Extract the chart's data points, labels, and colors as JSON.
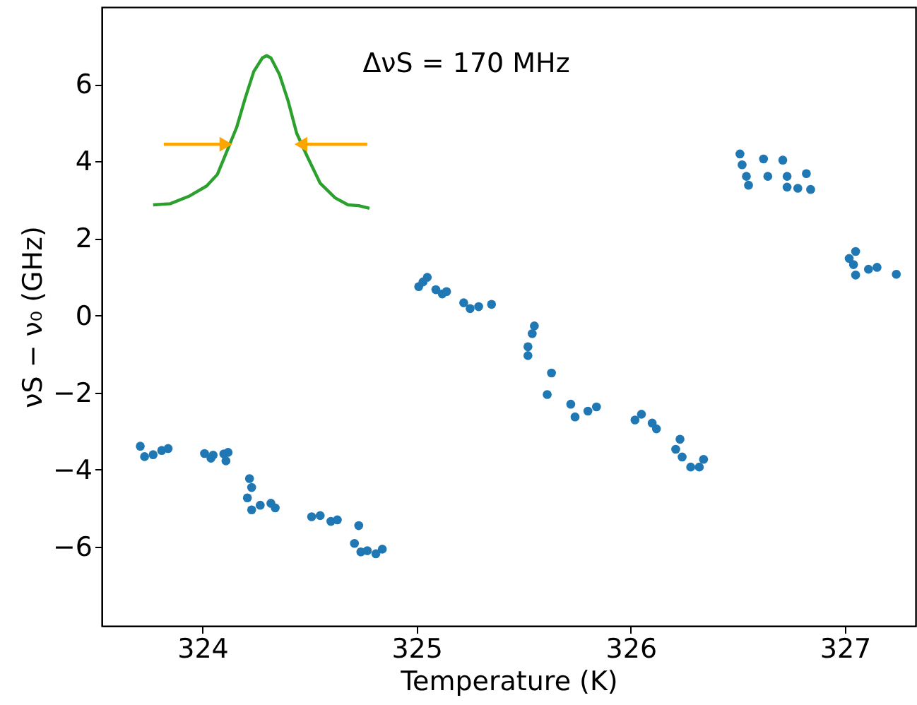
{
  "chart_data": {
    "type": "scatter",
    "xlabel": "Temperature (K)",
    "ylabel": "νS − ν₀ (GHz)",
    "xlim": [
      323.53,
      327.33
    ],
    "ylim": [
      -8.05,
      8
    ],
    "xticks": [
      324,
      325,
      326,
      327
    ],
    "yticks": [
      -6,
      -4,
      -2,
      0,
      2,
      4,
      6
    ],
    "grid": false,
    "marker": "circle",
    "annotations": [
      "ΔνS = 170 MHz"
    ],
    "series": [
      {
        "color": "#1f77b4",
        "x": [
          323.71,
          323.73,
          323.77,
          323.81,
          323.84,
          324.01,
          324.04,
          324.05,
          324.1,
          324.12,
          324.11,
          324.22,
          324.23,
          324.21,
          324.23,
          324.27,
          324.32,
          324.34,
          324.51,
          324.55,
          324.6,
          324.63,
          324.73,
          324.71,
          324.74,
          324.77,
          324.81,
          324.84,
          325.01,
          325.03,
          325.05,
          325.09,
          325.12,
          325.14,
          325.22,
          325.25,
          325.29,
          325.35,
          325.55,
          325.54,
          325.52,
          325.52,
          325.63,
          325.61,
          325.72,
          325.74,
          325.8,
          325.84,
          326.02,
          326.05,
          326.1,
          326.12,
          326.23,
          326.21,
          326.24,
          326.28,
          326.32,
          326.34,
          326.51,
          326.52,
          326.54,
          326.55,
          326.62,
          326.64,
          326.71,
          326.73,
          326.73,
          326.78,
          326.82,
          326.84,
          327.02,
          327.05,
          327.04,
          327.11,
          327.15,
          327.24,
          327.05
        ],
        "values": [
          -3.39,
          -3.66,
          -3.61,
          -3.5,
          -3.45,
          -3.58,
          -3.7,
          -3.62,
          -3.59,
          -3.55,
          -3.77,
          -4.23,
          -4.46,
          -4.73,
          -5.04,
          -4.92,
          -4.87,
          -4.99,
          -5.22,
          -5.19,
          -5.34,
          -5.3,
          -5.45,
          -5.91,
          -6.13,
          -6.1,
          -6.18,
          -6.06,
          0.75,
          0.87,
          0.99,
          0.67,
          0.56,
          0.62,
          0.33,
          0.18,
          0.23,
          0.29,
          -0.27,
          -0.47,
          -0.81,
          -1.04,
          -1.49,
          -2.05,
          -2.3,
          -2.63,
          -2.48,
          -2.37,
          -2.71,
          -2.56,
          -2.79,
          -2.94,
          -3.21,
          -3.47,
          -3.67,
          -3.93,
          -3.93,
          -3.73,
          4.19,
          3.91,
          3.61,
          3.38,
          4.06,
          3.61,
          4.03,
          3.61,
          3.33,
          3.3,
          3.68,
          3.27,
          1.48,
          1.66,
          1.32,
          1.2,
          1.25,
          1.07,
          1.05
        ]
      },
      {
        "type": "line",
        "color": "#2ca02c",
        "marker": "none",
        "x": [
          323.77,
          323.85,
          323.94,
          324.02,
          324.07,
          324.11,
          324.16,
          324.2,
          324.24,
          324.28,
          324.3,
          324.32,
          324.36,
          324.4,
          324.44,
          324.49,
          324.55,
          324.62,
          324.68,
          324.73,
          324.78
        ],
        "values": [
          2.87,
          2.9,
          3.1,
          3.36,
          3.66,
          4.2,
          4.88,
          5.64,
          6.33,
          6.68,
          6.74,
          6.68,
          6.25,
          5.57,
          4.73,
          4.12,
          3.43,
          3.05,
          2.87,
          2.85,
          2.78
        ]
      },
      {
        "type": "line",
        "color": "#ffa500",
        "marker": "triangle",
        "x": [
          323.82,
          324.11
        ],
        "values": [
          4.44,
          4.44
        ]
      },
      {
        "type": "line",
        "color": "#ffa500",
        "marker": "triangle",
        "x": [
          324.77,
          324.46
        ],
        "values": [
          4.44,
          4.44
        ]
      }
    ]
  }
}
